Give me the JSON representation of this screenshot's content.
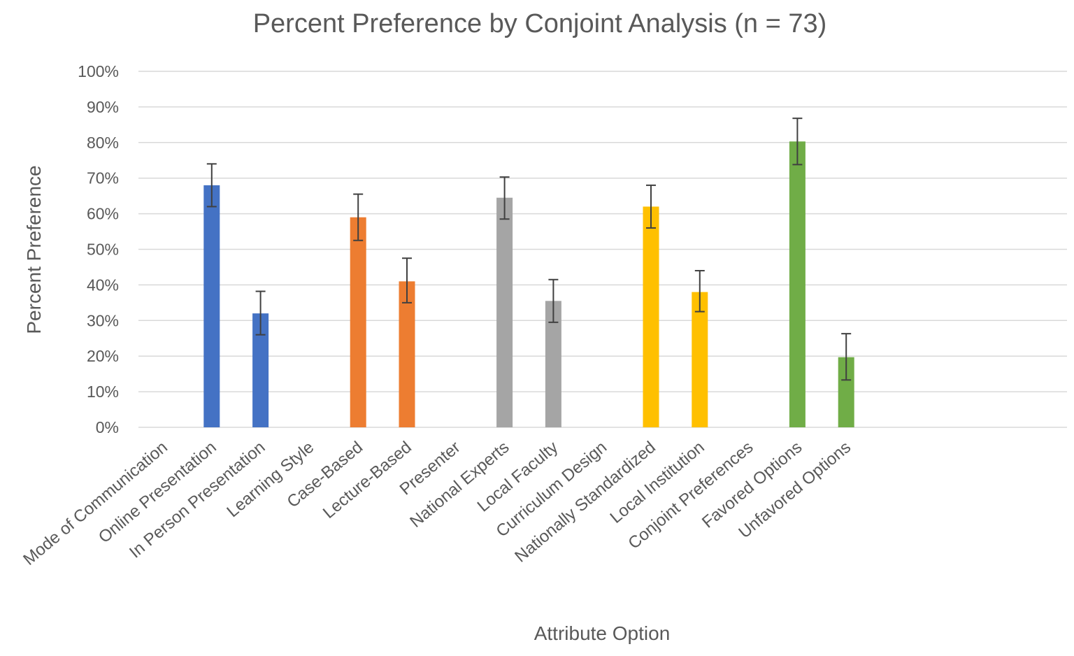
{
  "chart_data": {
    "type": "bar",
    "title": "Percent Preference by Conjoint Analysis (n = 73)",
    "xlabel": "Attribute Option",
    "ylabel": "Percent Preference",
    "ylim": [
      0,
      100
    ],
    "ytick_labels": [
      "0%",
      "10%",
      "20%",
      "30%",
      "40%",
      "50%",
      "60%",
      "70%",
      "80%",
      "90%",
      "100%"
    ],
    "grid": true,
    "categories": [
      "Mode of Communication",
      "Online Presentation",
      "In Person Presentation",
      "Learning Style",
      "Case-Based",
      "Lecture-Based",
      "Presenter",
      "National Experts",
      "Local Faculty",
      "Curriculum Design",
      "Nationally Standardized",
      "Local Institution",
      "Conjoint Preferences",
      "Favored Options",
      "Unfavored Options"
    ],
    "values": [
      null,
      68,
      32,
      null,
      59,
      41,
      null,
      64.5,
      35.5,
      null,
      62,
      38,
      null,
      80.3,
      19.7
    ],
    "error_low": [
      null,
      62,
      26,
      null,
      52.5,
      35,
      null,
      58.5,
      29.5,
      null,
      56,
      32.5,
      null,
      73.8,
      13.3
    ],
    "error_high": [
      null,
      74,
      38.2,
      null,
      65.5,
      47.5,
      null,
      70.3,
      41.5,
      null,
      68,
      44,
      null,
      86.8,
      26.3
    ],
    "colors": [
      null,
      "#4472c4",
      "#4472c4",
      null,
      "#ed7d31",
      "#ed7d31",
      null,
      "#a5a5a5",
      "#a5a5a5",
      null,
      "#ffc000",
      "#ffc000",
      null,
      "#70ad47",
      "#70ad47"
    ]
  }
}
